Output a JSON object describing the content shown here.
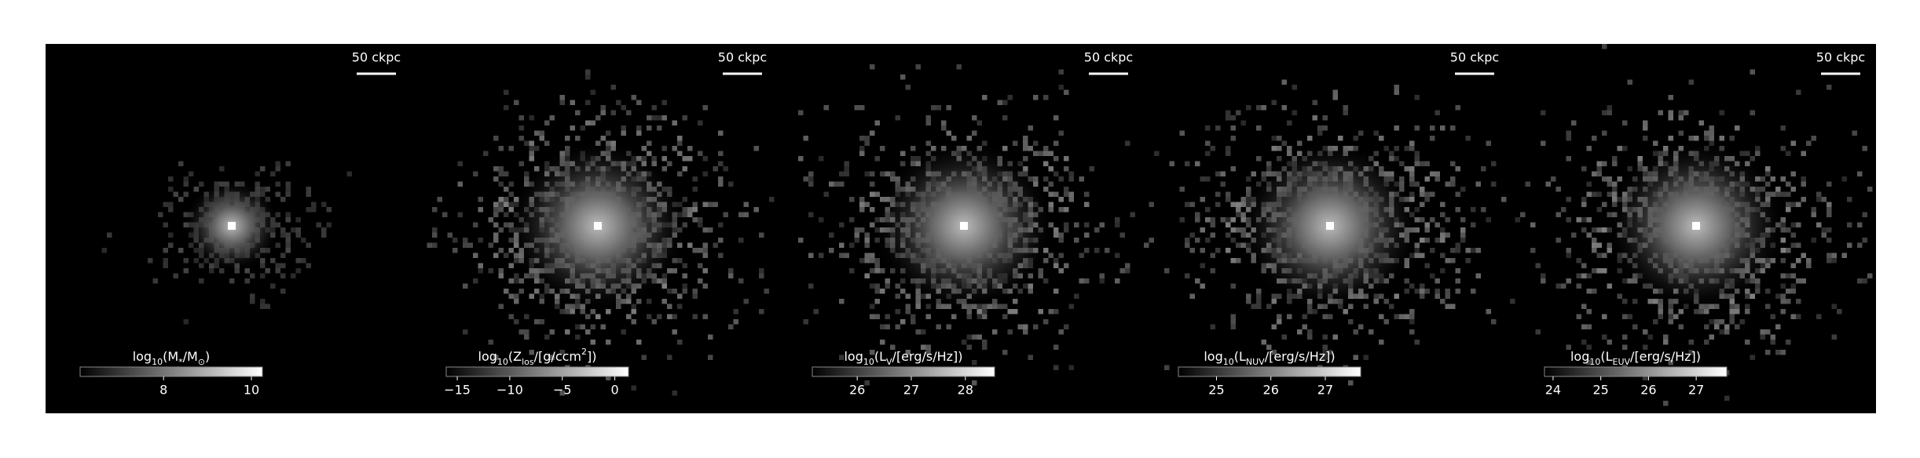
{
  "chart_data": [
    {
      "type": "image-map",
      "scale_label": "50 ckpc",
      "colorbar_label": [
        {
          "text": "log",
          "sub": false
        },
        {
          "text": "10",
          "sub": true
        },
        {
          "text": "(M",
          "sub": false
        },
        {
          "text": "*",
          "sub": true
        },
        {
          "text": "/M",
          "sub": false
        },
        {
          "text": "⊙",
          "sub": true
        },
        {
          "text": ")",
          "sub": false
        }
      ],
      "clim": [
        6.1,
        10.25
      ],
      "cticks": [
        8,
        10
      ]
    },
    {
      "type": "image-map",
      "scale_label": "50 ckpc",
      "colorbar_label": [
        {
          "text": "log",
          "sub": false
        },
        {
          "text": "10",
          "sub": true
        },
        {
          "text": "(Z",
          "sub": false
        },
        {
          "text": "los",
          "sub": true
        },
        {
          "text": "/[g/ccm",
          "sub": false
        },
        {
          "text": "2",
          "sup": true
        },
        {
          "text": "])",
          "sub": false
        }
      ],
      "clim": [
        -16.05,
        1.3
      ],
      "cticks": [
        {
          "value": -15,
          "label": "−15"
        },
        {
          "value": -10,
          "label": "−10"
        },
        {
          "value": -5,
          "label": "−5"
        },
        0
      ]
    },
    {
      "type": "image-map",
      "scale_label": "50 ckpc",
      "colorbar_label": [
        {
          "text": "log",
          "sub": false
        },
        {
          "text": "10",
          "sub": true
        },
        {
          "text": "(L",
          "sub": false
        },
        {
          "text": "V",
          "sub": true
        },
        {
          "text": "/[erg/s/Hz])",
          "sub": false
        }
      ],
      "clim": [
        25.17,
        28.54
      ],
      "cticks": [
        26,
        27,
        28
      ]
    },
    {
      "type": "image-map",
      "scale_label": "50 ckpc",
      "colorbar_label": [
        {
          "text": "log",
          "sub": false
        },
        {
          "text": "10",
          "sub": true
        },
        {
          "text": "(L",
          "sub": false
        },
        {
          "text": "NUV",
          "sub": true
        },
        {
          "text": "/[erg/s/Hz])",
          "sub": false
        }
      ],
      "clim": [
        24.3,
        27.65
      ],
      "cticks": [
        25,
        26,
        27
      ]
    },
    {
      "type": "image-map",
      "scale_label": "50 ckpc",
      "colorbar_label": [
        {
          "text": "log",
          "sub": false
        },
        {
          "text": "10",
          "sub": true
        },
        {
          "text": "(L",
          "sub": false
        },
        {
          "text": "EUV",
          "sub": true
        },
        {
          "text": "/[erg/s/Hz])",
          "sub": false
        }
      ],
      "clim": [
        23.82,
        27.64
      ],
      "cticks": [
        24,
        25,
        26,
        27
      ]
    }
  ]
}
